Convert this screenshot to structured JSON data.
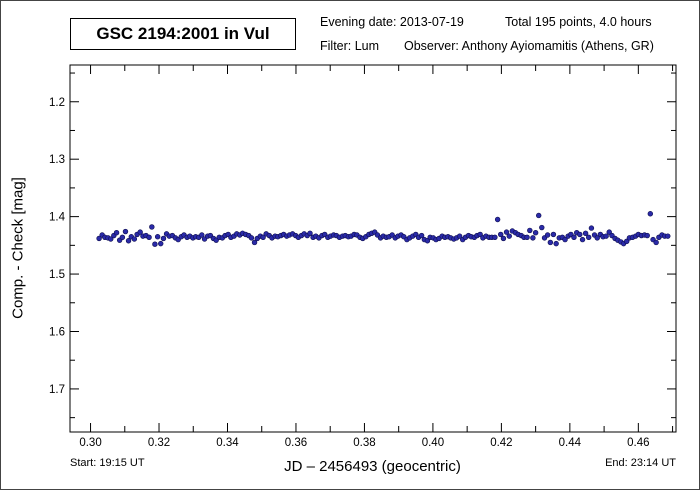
{
  "header": {
    "star_title": "GSC 2194:2001 in  Vul",
    "evening_date": "Evening date: 2013-07-19",
    "total": "Total 195 points, 4.0 hours",
    "filter": "Filter: Lum",
    "observer": "Observer: Anthony Ayiomamitis (Athens, GR)"
  },
  "footer": {
    "start": "Start: 19:15 UT",
    "end": "End: 23:14 UT"
  },
  "chart_data": {
    "type": "scatter",
    "xlabel": "JD – 2456493  (geocentric)",
    "ylabel": "Comp. - Check [mag]",
    "xlim": [
      0.294,
      0.471
    ],
    "ylim": [
      1.775,
      1.136
    ],
    "y_inverted": true,
    "grid": false,
    "xticks": [
      "0.30",
      "0.32",
      "0.34",
      "0.36",
      "0.38",
      "0.40",
      "0.42",
      "0.44",
      "0.46"
    ],
    "yticks": [
      "1.2",
      "1.3",
      "1.4",
      "1.5",
      "1.6",
      "1.7"
    ],
    "marker_color": "#2a2aa8",
    "x": [
      0.3025,
      0.3034,
      0.3042,
      0.3051,
      0.3059,
      0.3068,
      0.3076,
      0.3085,
      0.3093,
      0.3102,
      0.3111,
      0.3119,
      0.3128,
      0.3136,
      0.3145,
      0.3153,
      0.3162,
      0.3171,
      0.3179,
      0.3188,
      0.3196,
      0.3205,
      0.3213,
      0.3222,
      0.323,
      0.3239,
      0.3248,
      0.3256,
      0.3265,
      0.3273,
      0.3282,
      0.329,
      0.3299,
      0.3307,
      0.3316,
      0.3325,
      0.3333,
      0.3342,
      0.335,
      0.3359,
      0.3367,
      0.3376,
      0.3385,
      0.3393,
      0.3402,
      0.341,
      0.3419,
      0.3427,
      0.3436,
      0.3444,
      0.3453,
      0.3462,
      0.347,
      0.3479,
      0.3487,
      0.3496,
      0.3504,
      0.3513,
      0.3522,
      0.353,
      0.3539,
      0.3547,
      0.3556,
      0.3564,
      0.3573,
      0.3581,
      0.359,
      0.3599,
      0.3607,
      0.3616,
      0.3624,
      0.3633,
      0.3641,
      0.365,
      0.3658,
      0.3667,
      0.3676,
      0.3684,
      0.3693,
      0.3701,
      0.371,
      0.3718,
      0.3727,
      0.3736,
      0.3744,
      0.3753,
      0.3761,
      0.377,
      0.3778,
      0.3787,
      0.3795,
      0.3804,
      0.3813,
      0.3821,
      0.383,
      0.3838,
      0.3847,
      0.3855,
      0.3864,
      0.3872,
      0.3881,
      0.389,
      0.3898,
      0.3907,
      0.3915,
      0.3924,
      0.3932,
      0.3941,
      0.395,
      0.3958,
      0.3967,
      0.3975,
      0.3984,
      0.3992,
      0.4001,
      0.4009,
      0.4018,
      0.4027,
      0.4035,
      0.4044,
      0.4052,
      0.4061,
      0.4069,
      0.4078,
      0.4087,
      0.4095,
      0.4104,
      0.4112,
      0.4121,
      0.4129,
      0.4138,
      0.4146,
      0.4155,
      0.4164,
      0.4172,
      0.4181,
      0.4189,
      0.4198,
      0.4206,
      0.4215,
      0.4223,
      0.4232,
      0.4241,
      0.4249,
      0.4258,
      0.4266,
      0.4275,
      0.4283,
      0.4292,
      0.43,
      0.4309,
      0.4318,
      0.4326,
      0.4335,
      0.4343,
      0.4352,
      0.436,
      0.4369,
      0.4378,
      0.4386,
      0.4395,
      0.4403,
      0.4412,
      0.442,
      0.4429,
      0.4437,
      0.4446,
      0.4455,
      0.4463,
      0.4472,
      0.448,
      0.4489,
      0.4497,
      0.4506,
      0.4515,
      0.4523,
      0.4532,
      0.454,
      0.4549,
      0.4557,
      0.4566,
      0.4574,
      0.4583,
      0.4592,
      0.46,
      0.4609,
      0.4618,
      0.4626,
      0.4635,
      0.4643,
      0.4652,
      0.466,
      0.4669,
      0.4677,
      0.4686
    ],
    "y": [
      1.438,
      1.432,
      1.436,
      1.437,
      1.439,
      1.433,
      1.428,
      1.441,
      1.436,
      1.426,
      1.442,
      1.435,
      1.439,
      1.431,
      1.427,
      1.434,
      1.433,
      1.436,
      1.418,
      1.448,
      1.435,
      1.447,
      1.438,
      1.43,
      1.434,
      1.433,
      1.437,
      1.44,
      1.435,
      1.432,
      1.436,
      1.434,
      1.437,
      1.435,
      1.436,
      1.432,
      1.439,
      1.434,
      1.433,
      1.438,
      1.441,
      1.436,
      1.437,
      1.433,
      1.431,
      1.436,
      1.434,
      1.43,
      1.432,
      1.429,
      1.431,
      1.433,
      1.437,
      1.445,
      1.438,
      1.434,
      1.436,
      1.43,
      1.433,
      1.437,
      1.434,
      1.435,
      1.433,
      1.431,
      1.434,
      1.432,
      1.43,
      1.433,
      1.436,
      1.433,
      1.43,
      1.433,
      1.429,
      1.436,
      1.434,
      1.437,
      1.433,
      1.431,
      1.436,
      1.434,
      1.432,
      1.433,
      1.436,
      1.434,
      1.433,
      1.435,
      1.434,
      1.431,
      1.432,
      1.436,
      1.438,
      1.435,
      1.431,
      1.429,
      1.427,
      1.432,
      1.437,
      1.434,
      1.436,
      1.435,
      1.432,
      1.437,
      1.434,
      1.432,
      1.435,
      1.44,
      1.437,
      1.434,
      1.431,
      1.436,
      1.433,
      1.44,
      1.442,
      1.436,
      1.437,
      1.44,
      1.438,
      1.434,
      1.436,
      1.435,
      1.437,
      1.439,
      1.437,
      1.434,
      1.44,
      1.436,
      1.433,
      1.435,
      1.436,
      1.433,
      1.431,
      1.437,
      1.434,
      1.436,
      1.436,
      1.436,
      1.405,
      1.431,
      1.438,
      1.427,
      1.434,
      1.425,
      1.428,
      1.431,
      1.433,
      1.436,
      1.436,
      1.424,
      1.437,
      1.428,
      1.398,
      1.419,
      1.437,
      1.432,
      1.445,
      1.431,
      1.447,
      1.437,
      1.436,
      1.44,
      1.434,
      1.431,
      1.436,
      1.428,
      1.431,
      1.44,
      1.429,
      1.436,
      1.42,
      1.432,
      1.437,
      1.431,
      1.435,
      1.434,
      1.427,
      1.433,
      1.438,
      1.441,
      1.444,
      1.447,
      1.443,
      1.437,
      1.436,
      1.434,
      1.431,
      1.433,
      1.432,
      1.433,
      1.395,
      1.44,
      1.445,
      1.436,
      1.432,
      1.434,
      1.434
    ]
  }
}
